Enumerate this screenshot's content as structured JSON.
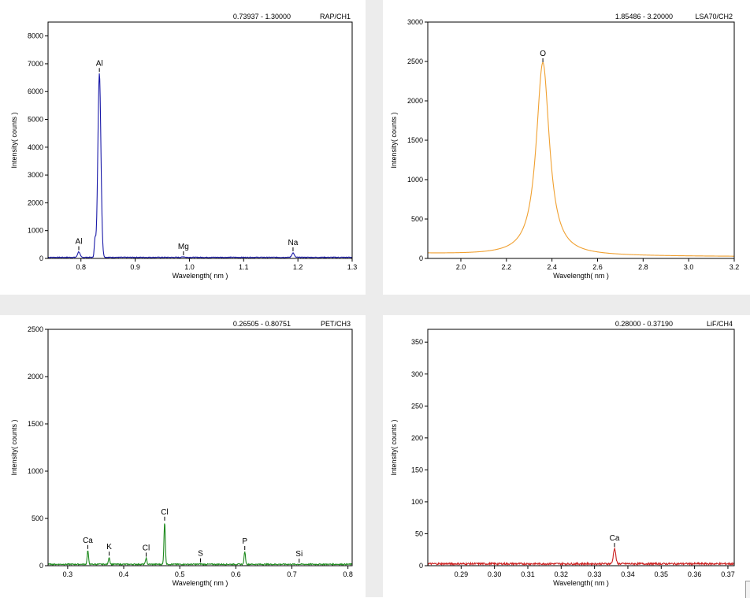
{
  "charts": [
    {
      "header_range": "0.73937 - 1.30000",
      "header_crystal": "RAP/CH1",
      "xlabel": "Wavelength( nm )",
      "ylabel": "Intensity( counts )",
      "xlim": [
        0.73937,
        1.3
      ],
      "ylim": [
        0,
        8500
      ],
      "xticks": [
        "0.8",
        "0.9",
        "1.0",
        "1.1",
        "1.2",
        "1.3"
      ],
      "yticks": [
        "0",
        "1000",
        "2000",
        "3000",
        "4000",
        "5000",
        "6000",
        "7000",
        "8000"
      ],
      "color": "#1a1aa8",
      "baseline": 40,
      "peaks": [
        {
          "label": "Al",
          "x": 0.796,
          "y": 240
        },
        {
          "label": "Al",
          "x": 0.834,
          "y": 6650
        },
        {
          "label": "Mg",
          "x": 0.989,
          "y": 60
        },
        {
          "label": "Na",
          "x": 1.191,
          "y": 200
        }
      ]
    },
    {
      "header_range": "1.85486 - 3.20000",
      "header_crystal": "LSA70/CH2",
      "xlabel": "Wavelength( nm )",
      "ylabel": "Intensity( counts )",
      "xlim": [
        1.85486,
        3.2
      ],
      "ylim": [
        0,
        3000
      ],
      "xticks": [
        "2.0",
        "2.2",
        "2.4",
        "2.6",
        "2.8",
        "3.0",
        "3.2"
      ],
      "yticks": [
        "0",
        "500",
        "1000",
        "1500",
        "2000",
        "2500",
        "3000"
      ],
      "color": "#f0a030",
      "baseline": 20,
      "peaks": [
        {
          "label": "O",
          "x": 2.36,
          "y": 2470
        }
      ]
    },
    {
      "header_range": "0.26505 - 0.80751",
      "header_crystal": "PET/CH3",
      "xlabel": "Wavelength( nm )",
      "ylabel": "Intensity( counts )",
      "xlim": [
        0.26505,
        0.80751
      ],
      "ylim": [
        0,
        2500
      ],
      "xticks": [
        "0.3",
        "0.4",
        "0.5",
        "0.6",
        "0.7",
        "0.8"
      ],
      "yticks": [
        "0",
        "500",
        "1000",
        "1500",
        "2000",
        "2500"
      ],
      "color": "#1e8a1e",
      "baseline": 15,
      "peaks": [
        {
          "label": "Ca",
          "x": 0.336,
          "y": 160
        },
        {
          "label": "K",
          "x": 0.374,
          "y": 90
        },
        {
          "label": "Cl",
          "x": 0.44,
          "y": 80
        },
        {
          "label": "Cl",
          "x": 0.473,
          "y": 460
        },
        {
          "label": "S",
          "x": 0.537,
          "y": 20
        },
        {
          "label": "P",
          "x": 0.616,
          "y": 150
        },
        {
          "label": "Si",
          "x": 0.713,
          "y": 15
        }
      ]
    },
    {
      "header_range": "0.28000 - 0.37190",
      "header_crystal": "LiF/CH4",
      "xlabel": "Wavelength( nm )",
      "ylabel": "Intensity( counts )",
      "xlim": [
        0.28,
        0.3719
      ],
      "ylim": [
        0,
        370
      ],
      "xticks": [
        "0.29",
        "0.30",
        "0.31",
        "0.32",
        "0.33",
        "0.34",
        "0.35",
        "0.36",
        "0.37"
      ],
      "yticks": [
        "0",
        "50",
        "100",
        "150",
        "200",
        "250",
        "300",
        "350"
      ],
      "color": "#cc2222",
      "baseline": 3,
      "peaks": [
        {
          "label": "Ca",
          "x": 0.336,
          "y": 27
        }
      ]
    }
  ]
}
